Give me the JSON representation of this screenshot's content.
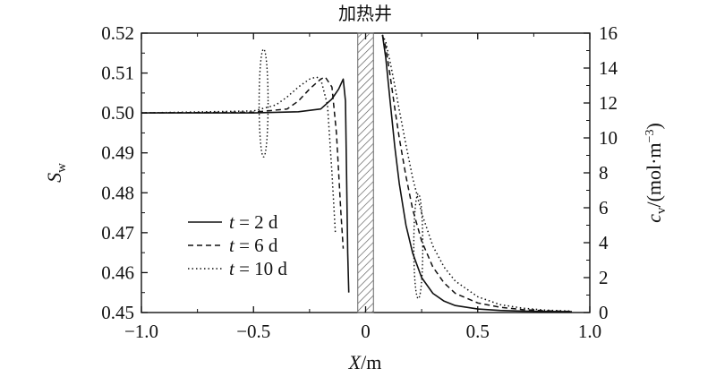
{
  "chart_data": {
    "type": "line",
    "annotation": "加热井",
    "x_axis": {
      "label_main": "X",
      "label_unit": "/m",
      "range": [
        -1.0,
        1.0
      ],
      "ticks": [
        -1.0,
        -0.5,
        0.0,
        0.5,
        1.0
      ],
      "tick_labels": [
        "−1.0",
        "−0.5",
        "0",
        "0.5",
        "1.0"
      ]
    },
    "y_axis_left": {
      "label_main": "S",
      "label_sub": "w",
      "range": [
        0.45,
        0.52
      ],
      "ticks": [
        0.45,
        0.46,
        0.47,
        0.48,
        0.49,
        0.5,
        0.51,
        0.52
      ],
      "tick_labels": [
        "0.45",
        "0.46",
        "0.47",
        "0.48",
        "0.49",
        "0.50",
        "0.51",
        "0.52"
      ]
    },
    "y_axis_right": {
      "label_main": "c",
      "label_sub": "v",
      "label_unit_open": "/(mol·m",
      "label_unit_sup": "−3",
      "label_unit_close": ")",
      "range": [
        0,
        16
      ],
      "ticks": [
        0,
        2,
        4,
        6,
        8,
        10,
        12,
        14,
        16
      ],
      "tick_labels": [
        "0",
        "2",
        "4",
        "6",
        "8",
        "10",
        "12",
        "14",
        "16"
      ]
    },
    "legend": [
      {
        "name_var": "t",
        "name_rest": " = 2 d",
        "style": "solid"
      },
      {
        "name_var": "t",
        "name_rest": " = 6 d",
        "style": "dashed"
      },
      {
        "name_var": "t",
        "name_rest": " = 10 d",
        "style": "dotted"
      }
    ],
    "well_region": {
      "x_start": -0.035,
      "x_end": 0.035
    },
    "series": [
      {
        "style": "solid",
        "axis": "left",
        "x": [
          -1.0,
          -0.5,
          -0.3,
          -0.2,
          -0.15,
          -0.12,
          -0.1,
          -0.09,
          -0.085,
          -0.08,
          -0.075
        ],
        "y": [
          0.5,
          0.5,
          0.5003,
          0.501,
          0.5035,
          0.506,
          0.5085,
          0.503,
          0.485,
          0.465,
          0.455
        ]
      },
      {
        "style": "dashed",
        "axis": "left",
        "x": [
          -1.0,
          -0.5,
          -0.35,
          -0.3,
          -0.25,
          -0.2,
          -0.18,
          -0.15,
          -0.13,
          -0.11,
          -0.1
        ],
        "y": [
          0.5,
          0.5002,
          0.501,
          0.503,
          0.506,
          0.5085,
          0.509,
          0.5065,
          0.495,
          0.475,
          0.466
        ]
      },
      {
        "style": "dotted",
        "axis": "left",
        "x": [
          -1.0,
          -0.5,
          -0.4,
          -0.35,
          -0.3,
          -0.25,
          -0.22,
          -0.2,
          -0.17,
          -0.15,
          -0.135
        ],
        "y": [
          0.5,
          0.5005,
          0.502,
          0.504,
          0.5065,
          0.5085,
          0.509,
          0.5085,
          0.502,
          0.485,
          0.47
        ]
      },
      {
        "style": "solid",
        "axis": "right",
        "x": [
          0.075,
          0.09,
          0.11,
          0.13,
          0.15,
          0.18,
          0.21,
          0.25,
          0.3,
          0.35,
          0.4,
          0.5,
          0.6,
          0.7,
          0.8,
          0.92
        ],
        "y": [
          15.9,
          14.6,
          12.0,
          9.5,
          7.4,
          5.0,
          3.4,
          2.0,
          1.1,
          0.65,
          0.4,
          0.2,
          0.12,
          0.08,
          0.06,
          0.05
        ]
      },
      {
        "style": "dashed",
        "axis": "right",
        "x": [
          0.075,
          0.09,
          0.11,
          0.13,
          0.15,
          0.18,
          0.21,
          0.25,
          0.3,
          0.35,
          0.4,
          0.5,
          0.6,
          0.7,
          0.8,
          0.92
        ],
        "y": [
          15.9,
          15.2,
          13.5,
          11.7,
          10.0,
          7.8,
          5.9,
          4.1,
          2.6,
          1.7,
          1.1,
          0.55,
          0.3,
          0.17,
          0.1,
          0.06
        ]
      },
      {
        "style": "dotted",
        "axis": "right",
        "x": [
          0.075,
          0.09,
          0.11,
          0.13,
          0.15,
          0.18,
          0.21,
          0.25,
          0.3,
          0.35,
          0.4,
          0.5,
          0.6,
          0.7,
          0.8,
          0.92
        ],
        "y": [
          15.9,
          15.5,
          14.3,
          13.0,
          11.6,
          9.6,
          7.7,
          5.7,
          3.8,
          2.6,
          1.8,
          0.9,
          0.45,
          0.25,
          0.14,
          0.08
        ]
      }
    ],
    "annotation_ellipses": [
      {
        "name": "ellipse-left-series-group",
        "cx": -0.455,
        "cy": 0.5025,
        "rx": 0.02,
        "ry": 0.0135,
        "axis": "left"
      },
      {
        "name": "ellipse-right-series-group",
        "cx": 0.235,
        "cy": 3.8,
        "rx": 0.02,
        "ry": 3.0,
        "axis": "right"
      }
    ]
  }
}
